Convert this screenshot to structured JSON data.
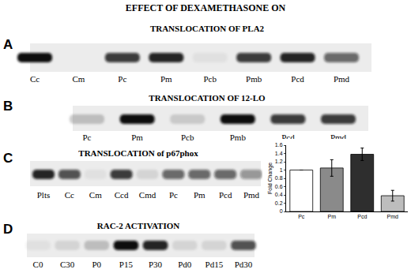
{
  "header": "EFFECT OF DEXAMETHASONE ON",
  "panels": [
    {
      "letter": "A",
      "title": "TRANSLOCATION OF PLA2",
      "lanes": [
        "Cc",
        "Cm",
        "Pc",
        "Pm",
        "Pcb",
        "Pmb",
        "Pcd",
        "Pmd"
      ],
      "band_intensity": [
        1.0,
        0.0,
        0.8,
        0.9,
        0.05,
        0.8,
        0.9,
        0.6
      ]
    },
    {
      "letter": "B",
      "title": "TRANSLOCATION OF 12-LO",
      "lanes": [
        "Pc",
        "Pm",
        "Pcb",
        "Pmb",
        "Pcd",
        "Pmd"
      ],
      "band_intensity": [
        0.2,
        1.0,
        0.15,
        1.0,
        0.8,
        0.8
      ]
    },
    {
      "letter": "C",
      "title": "TRANSLOCATION of p67phox",
      "lanes": [
        "Plts",
        "Cc",
        "Cm",
        "Ccd",
        "Cmd",
        "Pc",
        "Pm",
        "Pcd",
        "Pmd"
      ],
      "band_intensity": [
        0.9,
        0.7,
        0.05,
        0.8,
        0.1,
        0.6,
        0.6,
        0.6,
        0.4
      ]
    },
    {
      "letter": "D",
      "title": "RAC-2 ACTIVATION",
      "lanes": [
        "C0",
        "C30",
        "P0",
        "P15",
        "P30",
        "Pd0",
        "Pd15",
        "Pd30"
      ],
      "band_intensity": [
        0.05,
        0.1,
        0.2,
        1.0,
        0.9,
        0.1,
        0.1,
        0.7
      ]
    }
  ],
  "chart_data": {
    "type": "bar",
    "y_label": "Fold Change",
    "categories": [
      "Pc",
      "Pm",
      "Pcd",
      "Pmd"
    ],
    "values": [
      1.0,
      1.05,
      1.38,
      0.38
    ],
    "errors": [
      0,
      0.2,
      0.15,
      0.13
    ],
    "colors": [
      "#ffffff",
      "#8a8a8a",
      "#2e2e2e",
      "#bdbdbd"
    ],
    "ylim": [
      0,
      1.6
    ],
    "yticks": [
      0,
      0.2,
      0.4,
      0.6,
      0.8,
      1,
      1.2,
      1.4,
      1.6
    ],
    "grid": false
  }
}
